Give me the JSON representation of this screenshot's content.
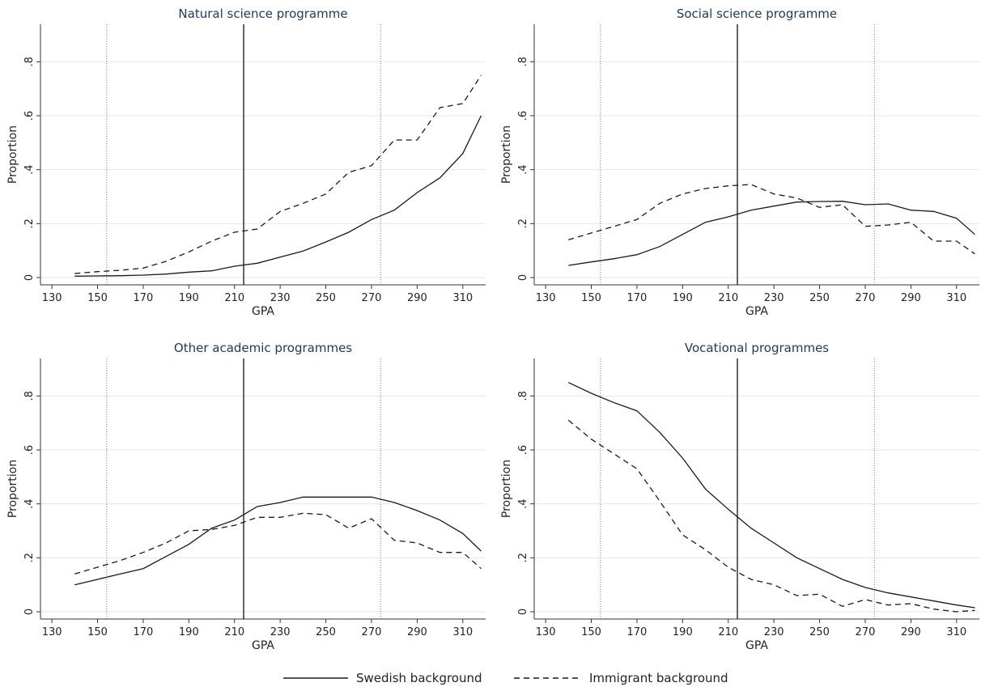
{
  "chart_data": [
    {
      "type": "line",
      "title": "Natural science programme",
      "xlabel": "GPA",
      "ylabel": "Proportion",
      "xlim": [
        125,
        320
      ],
      "ylim": [
        0,
        0.93
      ],
      "xticks": [
        "130",
        "150",
        "170",
        "190",
        "210",
        "230",
        "250",
        "270",
        "290",
        "310"
      ],
      "yticks": [
        "0",
        ".2",
        ".4",
        ".6",
        ".8"
      ],
      "reference_lines": [
        154,
        214,
        274
      ],
      "x": [
        140,
        150,
        160,
        170,
        180,
        190,
        200,
        210,
        220,
        230,
        240,
        250,
        260,
        270,
        280,
        290,
        300,
        310,
        318
      ],
      "series": [
        {
          "name": "Swedish background",
          "values": [
            0.005,
            0.006,
            0.007,
            0.009,
            0.013,
            0.02,
            0.025,
            0.042,
            0.053,
            0.076,
            0.098,
            0.132,
            0.168,
            0.215,
            0.25,
            0.315,
            0.37,
            0.46,
            0.6
          ]
        },
        {
          "name": "Immigrant background",
          "values": [
            0.015,
            0.022,
            0.027,
            0.035,
            0.06,
            0.095,
            0.135,
            0.168,
            0.18,
            0.245,
            0.275,
            0.31,
            0.39,
            0.415,
            0.51,
            0.51,
            0.63,
            0.645,
            0.75
          ]
        }
      ]
    },
    {
      "type": "line",
      "title": "Social science programme",
      "xlabel": "GPA",
      "ylabel": "Proportion",
      "xlim": [
        125,
        320
      ],
      "ylim": [
        0,
        0.93
      ],
      "xticks": [
        "130",
        "150",
        "170",
        "190",
        "210",
        "230",
        "250",
        "270",
        "290",
        "310"
      ],
      "yticks": [
        "0",
        ".2",
        ".4",
        ".6",
        ".8"
      ],
      "reference_lines": [
        154,
        214,
        274
      ],
      "x": [
        140,
        150,
        160,
        170,
        180,
        190,
        200,
        210,
        220,
        230,
        240,
        250,
        260,
        270,
        280,
        290,
        300,
        310,
        318
      ],
      "series": [
        {
          "name": "Swedish background",
          "values": [
            0.045,
            0.058,
            0.07,
            0.085,
            0.115,
            0.16,
            0.205,
            0.225,
            0.25,
            0.265,
            0.28,
            0.282,
            0.283,
            0.27,
            0.273,
            0.25,
            0.245,
            0.22,
            0.16
          ]
        },
        {
          "name": "Immigrant background",
          "values": [
            0.14,
            0.165,
            0.19,
            0.215,
            0.275,
            0.31,
            0.33,
            0.34,
            0.345,
            0.31,
            0.295,
            0.26,
            0.27,
            0.19,
            0.195,
            0.205,
            0.135,
            0.135,
            0.088
          ]
        }
      ]
    },
    {
      "type": "line",
      "title": "Other academic programmes",
      "xlabel": "GPA",
      "ylabel": "Proportion",
      "xlim": [
        125,
        320
      ],
      "ylim": [
        0,
        0.93
      ],
      "xticks": [
        "130",
        "150",
        "170",
        "190",
        "210",
        "230",
        "250",
        "270",
        "290",
        "310"
      ],
      "yticks": [
        "0",
        ".2",
        ".4",
        ".6",
        ".8"
      ],
      "reference_lines": [
        154,
        214,
        274
      ],
      "x": [
        140,
        150,
        160,
        170,
        180,
        190,
        200,
        210,
        220,
        230,
        240,
        250,
        260,
        270,
        280,
        290,
        300,
        310,
        318
      ],
      "series": [
        {
          "name": "Swedish background",
          "values": [
            0.1,
            0.12,
            0.14,
            0.16,
            0.205,
            0.25,
            0.31,
            0.34,
            0.39,
            0.405,
            0.425,
            0.425,
            0.425,
            0.425,
            0.405,
            0.375,
            0.34,
            0.29,
            0.225
          ]
        },
        {
          "name": "Immigrant background",
          "values": [
            0.14,
            0.165,
            0.19,
            0.22,
            0.255,
            0.3,
            0.305,
            0.32,
            0.35,
            0.35,
            0.365,
            0.36,
            0.31,
            0.345,
            0.265,
            0.255,
            0.22,
            0.22,
            0.16
          ]
        }
      ]
    },
    {
      "type": "line",
      "title": "Vocational programmes",
      "xlabel": "GPA",
      "ylabel": "Proportion",
      "xlim": [
        125,
        320
      ],
      "ylim": [
        0,
        0.93
      ],
      "xticks": [
        "130",
        "150",
        "170",
        "190",
        "210",
        "230",
        "250",
        "270",
        "290",
        "310"
      ],
      "yticks": [
        "0",
        ".2",
        ".4",
        ".6",
        ".8"
      ],
      "reference_lines": [
        154,
        214,
        274
      ],
      "x": [
        140,
        150,
        160,
        170,
        180,
        190,
        200,
        210,
        220,
        230,
        240,
        250,
        260,
        270,
        280,
        290,
        300,
        310,
        318
      ],
      "series": [
        {
          "name": "Swedish background",
          "values": [
            0.85,
            0.81,
            0.775,
            0.745,
            0.665,
            0.57,
            0.455,
            0.38,
            0.31,
            0.255,
            0.2,
            0.16,
            0.12,
            0.09,
            0.07,
            0.055,
            0.04,
            0.025,
            0.015
          ]
        },
        {
          "name": "Immigrant background",
          "values": [
            0.71,
            0.64,
            0.585,
            0.53,
            0.41,
            0.285,
            0.23,
            0.165,
            0.12,
            0.1,
            0.06,
            0.065,
            0.02,
            0.045,
            0.025,
            0.03,
            0.01,
            0.0,
            0.005
          ]
        }
      ]
    }
  ],
  "legend": {
    "swedish_label": "Swedish background",
    "immigrant_label": "Immigrant background"
  },
  "colors": {
    "line": "#1a1a1a",
    "grid": "#e6e6e6",
    "title": "#1f3b63"
  }
}
